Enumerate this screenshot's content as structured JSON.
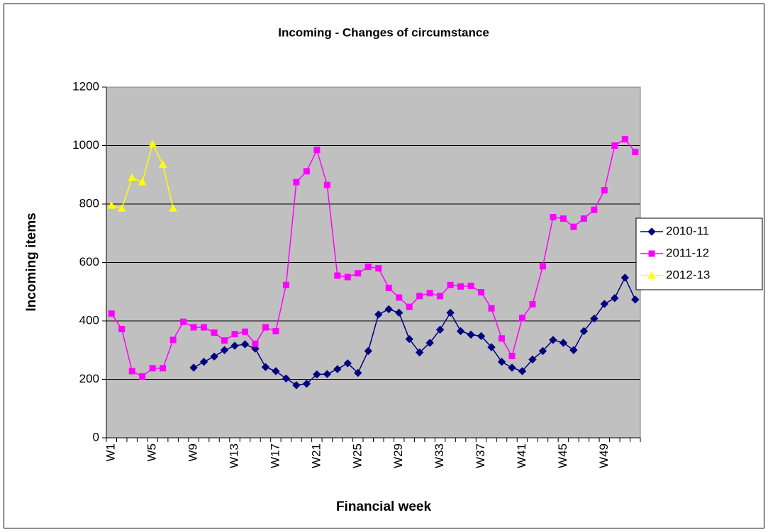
{
  "chart_data": {
    "type": "line",
    "title": "Incoming - Changes of circumstance",
    "x_label": "Financial week",
    "y_label": "Incoming items",
    "categories": [
      "W1",
      null,
      null,
      null,
      "W5",
      null,
      null,
      null,
      "W9",
      null,
      null,
      null,
      "W13",
      null,
      null,
      null,
      "W17",
      null,
      null,
      null,
      "W21",
      null,
      null,
      null,
      "W25",
      null,
      null,
      null,
      "W29",
      null,
      null,
      null,
      "W33",
      null,
      null,
      null,
      "W37",
      null,
      null,
      null,
      "W41",
      null,
      null,
      null,
      "W45",
      null,
      null,
      null,
      "W49",
      null,
      null,
      null
    ],
    "series": [
      {
        "name": "2010-11",
        "color": "#000080",
        "marker": "diamond",
        "values": [
          null,
          null,
          null,
          null,
          null,
          null,
          null,
          null,
          240,
          260,
          278,
          300,
          315,
          320,
          305,
          242,
          228,
          203,
          180,
          185,
          217,
          218,
          235,
          255,
          222,
          297,
          422,
          440,
          428,
          338,
          292,
          325,
          370,
          428,
          365,
          353,
          348,
          310,
          260,
          240,
          228,
          268,
          297,
          335,
          325,
          300,
          365,
          408,
          458,
          478,
          548,
          473
        ]
      },
      {
        "name": "2011-12",
        "color": "#ff00ff",
        "marker": "square",
        "values": [
          425,
          372,
          228,
          210,
          238,
          238,
          335,
          397,
          378,
          378,
          360,
          333,
          355,
          363,
          322,
          378,
          365,
          523,
          875,
          912,
          985,
          865,
          555,
          550,
          563,
          585,
          580,
          513,
          480,
          448,
          485,
          495,
          485,
          523,
          518,
          520,
          498,
          443,
          340,
          280,
          410,
          457,
          587,
          755,
          750,
          722,
          750,
          780,
          847,
          1000,
          1022,
          978
        ]
      },
      {
        "name": "2012-13",
        "color": "#ffff00",
        "marker": "triangle",
        "values": [
          795,
          785,
          890,
          875,
          1005,
          935,
          785,
          null,
          null,
          null,
          null,
          null,
          null,
          null,
          null,
          null,
          null,
          null,
          null,
          null,
          null,
          null,
          null,
          null,
          null,
          null,
          null,
          null,
          null,
          null,
          null,
          null,
          null,
          null,
          null,
          null,
          null,
          null,
          null,
          null,
          null,
          null,
          null,
          null,
          null,
          null,
          null,
          null,
          null,
          null,
          null,
          null
        ]
      }
    ],
    "ylim": [
      0,
      1200
    ],
    "yticks": [
      0,
      200,
      400,
      600,
      800,
      1000,
      1200
    ],
    "grid": true,
    "plot_background": "#c0c0c0",
    "legend": "right"
  }
}
